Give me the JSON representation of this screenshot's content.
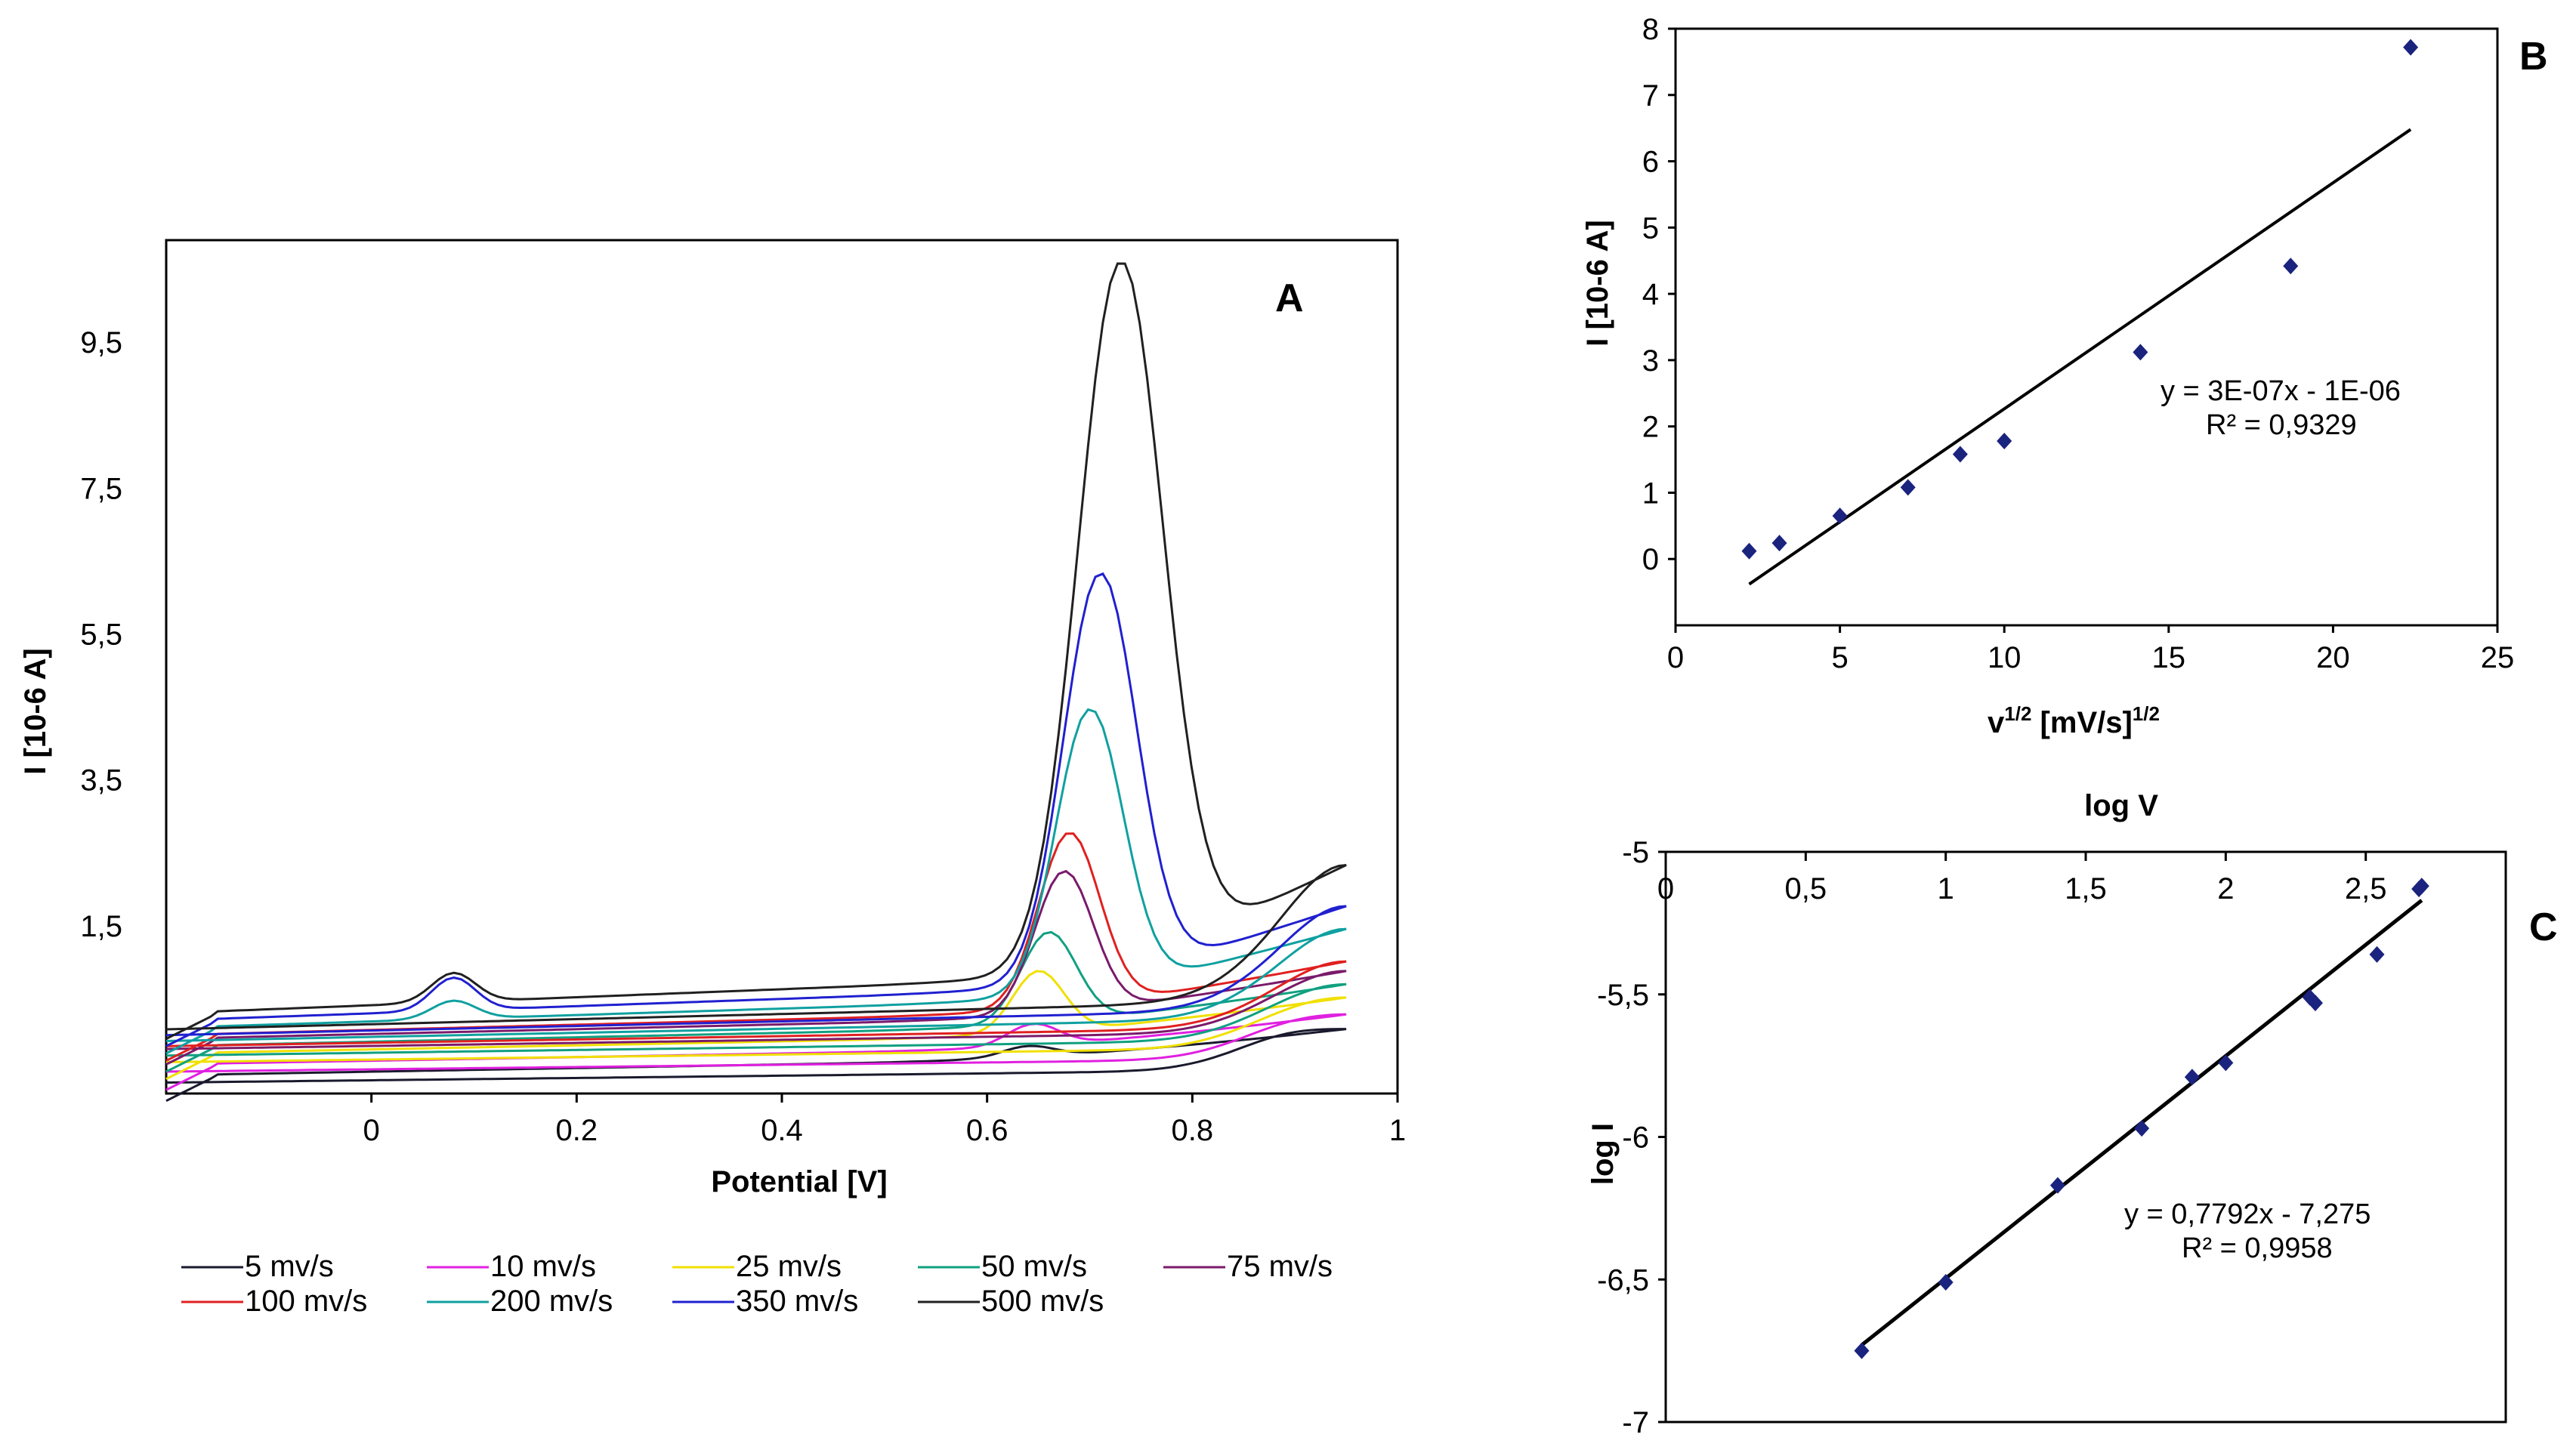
{
  "chart_data": [
    {
      "id": "A",
      "type": "line",
      "panel_label": "A",
      "xlabel": "Potential [V]",
      "ylabel": "I [10-6  A]",
      "xlim": [
        -0.2,
        1.0
      ],
      "ylim": [
        -0.8,
        10.9
      ],
      "x_ticks": [
        {
          "v": 0,
          "label": "0"
        },
        {
          "v": 0.2,
          "label": "0.2"
        },
        {
          "v": 0.4,
          "label": "0.4"
        },
        {
          "v": 0.6,
          "label": "0.6"
        },
        {
          "v": 0.8,
          "label": "0.8"
        },
        {
          "v": 1.0,
          "label": "1"
        }
      ],
      "y_ticks": [
        {
          "v": 1.5,
          "label": "1,5"
        },
        {
          "v": 3.5,
          "label": "3,5"
        },
        {
          "v": 5.5,
          "label": "5,5"
        },
        {
          "v": 7.5,
          "label": "7,5"
        },
        {
          "v": 9.5,
          "label": "9,5"
        }
      ],
      "series": [
        {
          "name": "5 mv/s",
          "color": "#1a1a2e",
          "base": -0.55,
          "slope": 0.45,
          "peak": 0.15,
          "peak_x": 0.64,
          "width": 0.035,
          "end": 0.05,
          "lower": 0.1,
          "small_peak": 0.0
        },
        {
          "name": "10 mv/s",
          "color": "#e020e0",
          "base": -0.4,
          "slope": 0.45,
          "peak": 0.3,
          "peak_x": 0.645,
          "width": 0.035,
          "end": 0.1,
          "lower": 0.1,
          "small_peak": 0.0
        },
        {
          "name": "25 mv/s",
          "color": "#f0e000",
          "base": -0.25,
          "slope": 0.5,
          "peak": 0.85,
          "peak_x": 0.65,
          "width": 0.035,
          "end": 0.15,
          "lower": 0.12,
          "small_peak": 0.0
        },
        {
          "name": "50 mv/s",
          "color": "#10a080",
          "base": -0.15,
          "slope": 0.55,
          "peak": 1.25,
          "peak_x": 0.66,
          "width": 0.038,
          "end": 0.2,
          "lower": 0.13,
          "small_peak": 0.0
        },
        {
          "name": "75 mv/s",
          "color": "#7a1a6a",
          "base": -0.05,
          "slope": 0.6,
          "peak": 1.95,
          "peak_x": 0.675,
          "width": 0.04,
          "end": 0.25,
          "lower": 0.14,
          "small_peak": 0.0
        },
        {
          "name": "100 mv/s",
          "color": "#e02020",
          "base": 0.0,
          "slope": 0.65,
          "peak": 2.4,
          "peak_x": 0.68,
          "width": 0.042,
          "end": 0.3,
          "lower": 0.15,
          "small_peak": 0.0
        },
        {
          "name": "200 mv/s",
          "color": "#10a0a0",
          "base": 0.1,
          "slope": 0.8,
          "peak": 3.9,
          "peak_x": 0.7,
          "width": 0.046,
          "end": 0.55,
          "lower": 0.18,
          "small_peak": 0.25
        },
        {
          "name": "350 mv/s",
          "color": "#2020d0",
          "base": 0.2,
          "slope": 0.9,
          "peak": 5.6,
          "peak_x": 0.71,
          "width": 0.05,
          "end": 0.7,
          "lower": 0.2,
          "small_peak": 0.45
        },
        {
          "name": "500 mv/s",
          "color": "#202020",
          "base": 0.3,
          "slope": 1.0,
          "peak": 9.7,
          "peak_x": 0.73,
          "width": 0.058,
          "end": 1.1,
          "lower": 0.22,
          "small_peak": 0.4
        }
      ],
      "legend": [
        "5 mv/s",
        "10 mv/s",
        "25 mv/s",
        "50 mv/s",
        "75 mv/s",
        "100 mv/s",
        "200 mv/s",
        "350 mv/s",
        "500 mv/s"
      ]
    },
    {
      "id": "B",
      "type": "scatter",
      "panel_label": "B",
      "xlabel_main": "v",
      "xlabel_sup": "1/2",
      "xlabel_rest": " [mV/s]",
      "xlabel_sup2": "1/2",
      "ylabel": "I [10-6 A]",
      "xlim": [
        0,
        25
      ],
      "ylim": [
        -1,
        8
      ],
      "x_ticks": [
        {
          "v": 0,
          "label": "0"
        },
        {
          "v": 5,
          "label": "5"
        },
        {
          "v": 10,
          "label": "10"
        },
        {
          "v": 15,
          "label": "15"
        },
        {
          "v": 20,
          "label": "20"
        },
        {
          "v": 25,
          "label": "25"
        }
      ],
      "y_ticks": [
        {
          "v": 0,
          "label": "0"
        },
        {
          "v": 1,
          "label": "1"
        },
        {
          "v": 2,
          "label": "2"
        },
        {
          "v": 3,
          "label": "3"
        },
        {
          "v": 4,
          "label": "4"
        },
        {
          "v": 5,
          "label": "5"
        },
        {
          "v": 6,
          "label": "6"
        },
        {
          "v": 7,
          "label": "7"
        },
        {
          "v": 8,
          "label": "8"
        }
      ],
      "points": [
        {
          "x": 2.24,
          "y": 0.12
        },
        {
          "x": 3.16,
          "y": 0.24
        },
        {
          "x": 5.0,
          "y": 0.65
        },
        {
          "x": 7.07,
          "y": 1.08
        },
        {
          "x": 8.66,
          "y": 1.58
        },
        {
          "x": 10.0,
          "y": 1.78
        },
        {
          "x": 14.14,
          "y": 3.12
        },
        {
          "x": 18.71,
          "y": 4.42
        },
        {
          "x": 22.36,
          "y": 7.72
        }
      ],
      "fit": {
        "x": [
          2.24,
          22.36
        ],
        "y": [
          -0.38,
          6.48
        ]
      },
      "equation": "y = 3E-07x - 1E-06",
      "r2": "R² = 0,9329"
    },
    {
      "id": "C",
      "type": "scatter",
      "panel_label": "C",
      "xlabel": "log V",
      "ylabel": "log I",
      "xlim": [
        0,
        3
      ],
      "ylim": [
        -7,
        -5
      ],
      "x_ticks": [
        {
          "v": 0,
          "label": "0"
        },
        {
          "v": 0.5,
          "label": "0,5"
        },
        {
          "v": 1,
          "label": "1"
        },
        {
          "v": 1.5,
          "label": "1,5"
        },
        {
          "v": 2,
          "label": "2"
        },
        {
          "v": 2.5,
          "label": "2,5"
        }
      ],
      "y_ticks": [
        {
          "v": -5,
          "label": "-5"
        },
        {
          "v": -5.5,
          "label": "-5,5"
        },
        {
          "v": -6,
          "label": "-6"
        },
        {
          "v": -6.5,
          "label": "-6,5"
        },
        {
          "v": -7,
          "label": "-7"
        }
      ],
      "points": [
        {
          "x": 0.7,
          "y": -6.75
        },
        {
          "x": 1.0,
          "y": -6.51
        },
        {
          "x": 1.4,
          "y": -6.17
        },
        {
          "x": 1.7,
          "y": -5.97
        },
        {
          "x": 1.88,
          "y": -5.79
        },
        {
          "x": 2.0,
          "y": -5.74
        },
        {
          "x": 2.3,
          "y": -5.51
        },
        {
          "x": 2.32,
          "y": -5.53
        },
        {
          "x": 2.54,
          "y": -5.36
        },
        {
          "x": 2.7,
          "y": -5.12
        },
        {
          "x": 2.69,
          "y": -5.13
        }
      ],
      "fit": {
        "x": [
          0.7,
          2.7
        ],
        "y": [
          -6.73,
          -5.17
        ]
      },
      "equation": "y = 0,7792x  - 7,275",
      "r2": "R² = 0,9958"
    }
  ]
}
